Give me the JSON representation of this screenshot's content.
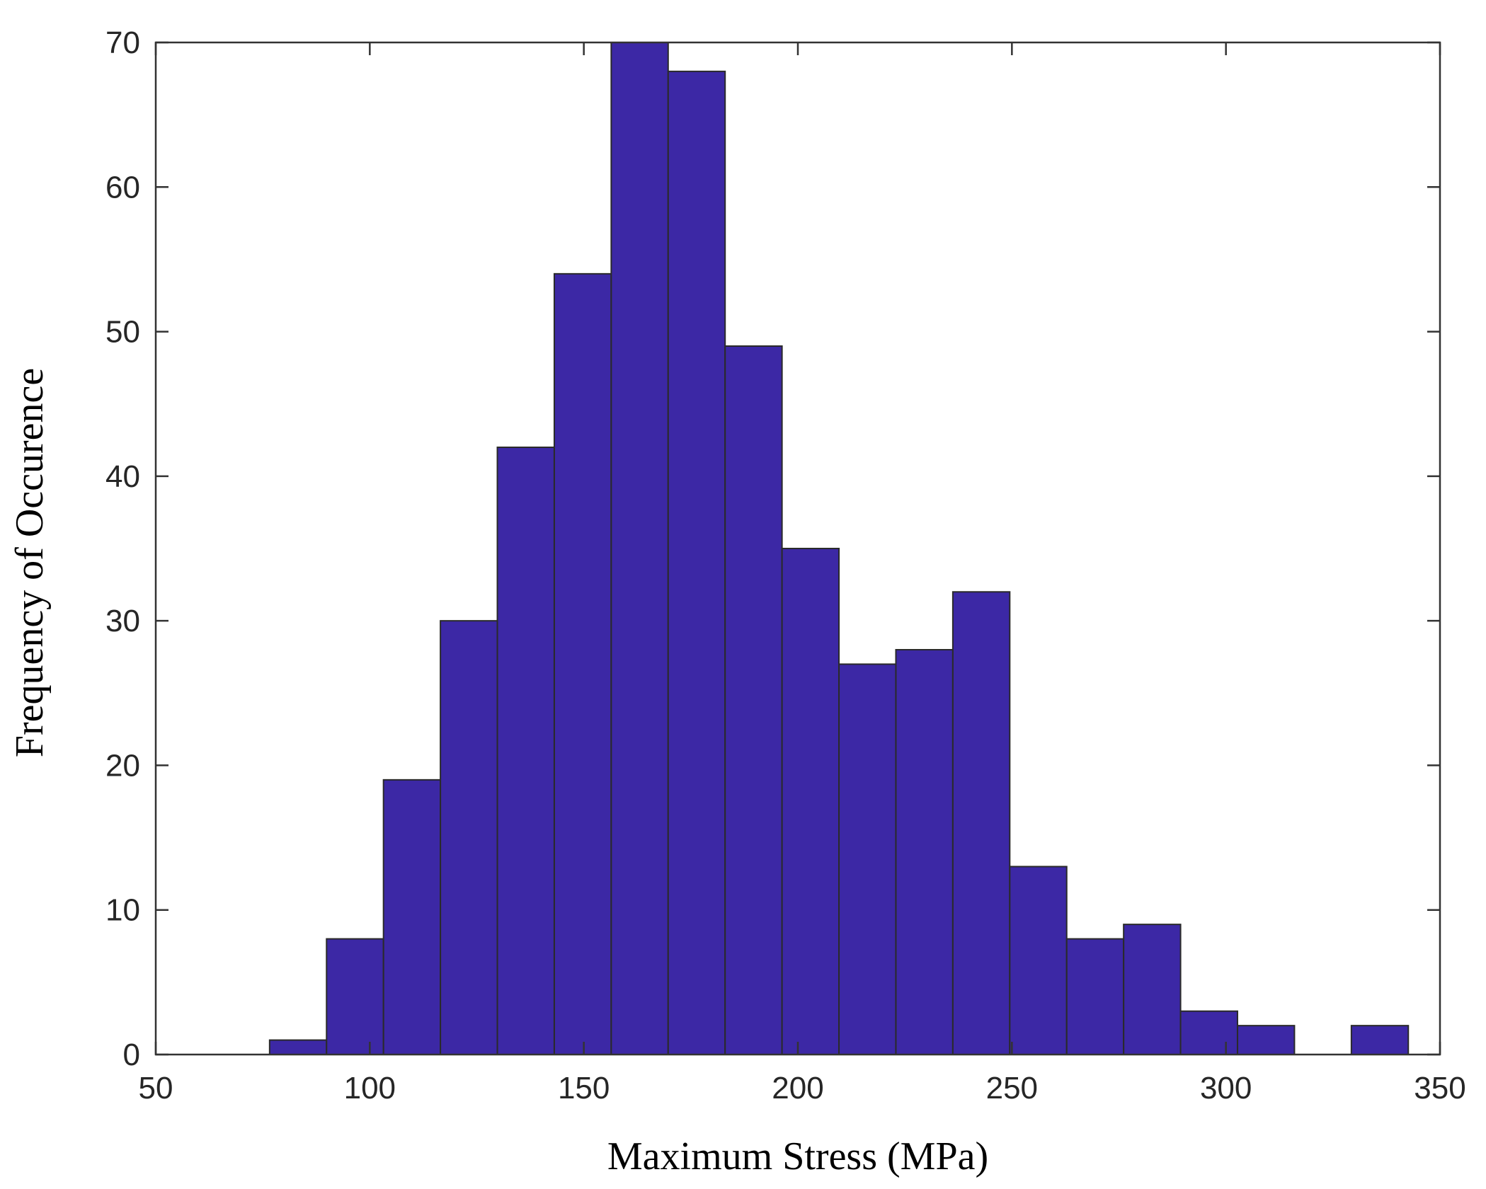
{
  "chart_data": {
    "type": "bar",
    "subtype": "histogram",
    "bin_edges": [
      63.3,
      76.6,
      89.9,
      103.2,
      116.5,
      129.8,
      143.1,
      156.4,
      169.7,
      183.0,
      196.3,
      209.6,
      222.9,
      236.2,
      249.5,
      262.8,
      276.1,
      289.4,
      302.7,
      316.0,
      329.3,
      342.6
    ],
    "values": [
      0,
      1,
      8,
      19,
      30,
      42,
      54,
      70,
      68,
      49,
      35,
      27,
      28,
      32,
      13,
      8,
      9,
      3,
      2,
      0,
      2
    ],
    "xlabel": "Maximum Stress (MPa)",
    "ylabel": "Frequency of Occurence",
    "xlim": [
      50,
      350
    ],
    "ylim": [
      0,
      70
    ],
    "xticks": [
      50,
      100,
      150,
      200,
      250,
      300,
      350
    ],
    "yticks": [
      0,
      10,
      20,
      30,
      40,
      50,
      60,
      70
    ],
    "grid": false,
    "bar_color": "#3c28a5"
  }
}
